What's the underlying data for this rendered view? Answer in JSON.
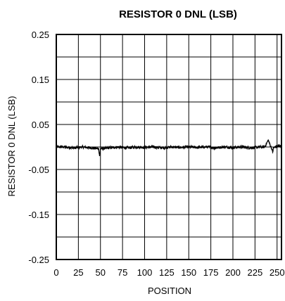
{
  "chart_data": {
    "type": "line",
    "title": "RESISTOR 0 DNL (LSB)",
    "xlabel": "POSITION",
    "ylabel": "RESISTOR 0 DNL (LSB)",
    "xlim": [
      0,
      255
    ],
    "ylim": [
      -0.25,
      0.25
    ],
    "x_ticks": [
      "0",
      "25",
      "50",
      "75",
      "100",
      "125",
      "150",
      "175",
      "200",
      "225",
      "250"
    ],
    "y_ticks": [
      "0.25",
      "0.15",
      "0.05",
      "-0.05",
      "-0.15",
      "-0.25"
    ],
    "grid": true,
    "series": [
      {
        "values_note": "",
        "x": [
          0,
          10,
          20,
          30,
          40,
          48,
          49,
          50,
          60,
          70,
          80,
          90,
          100,
          110,
          120,
          130,
          140,
          150,
          160,
          170,
          180,
          190,
          200,
          210,
          220,
          230,
          236,
          240,
          244,
          245,
          246,
          250,
          255
        ],
        "y": [
          0.0,
          0.0,
          -0.002,
          0.0,
          -0.002,
          -0.004,
          -0.02,
          -0.004,
          -0.002,
          0.0,
          -0.002,
          0.0,
          -0.001,
          0.0,
          -0.002,
          0.0,
          -0.001,
          0.0,
          -0.001,
          0.0,
          -0.002,
          0.0,
          -0.001,
          0.0,
          -0.002,
          0.0,
          0.0,
          0.015,
          -0.004,
          -0.012,
          -0.002,
          0.002,
          0.002
        ]
      }
    ]
  }
}
